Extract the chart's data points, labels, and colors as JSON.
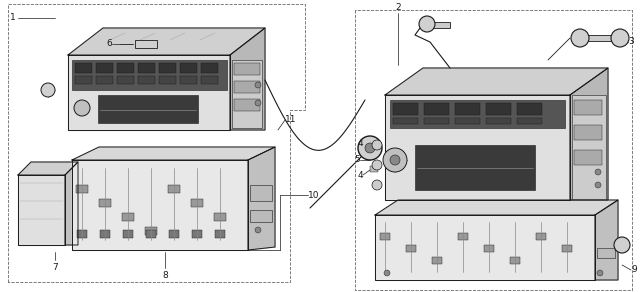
{
  "bg_color": "#ffffff",
  "line_color": "#1a1a1a",
  "fig_width": 6.4,
  "fig_height": 2.92,
  "dpi": 100,
  "gray_light": "#e8e8e8",
  "gray_mid": "#c0c0c0",
  "gray_dark": "#888888",
  "gray_darker": "#555555",
  "gray_box": "#f5f5f5",
  "dash_color": "#444444"
}
